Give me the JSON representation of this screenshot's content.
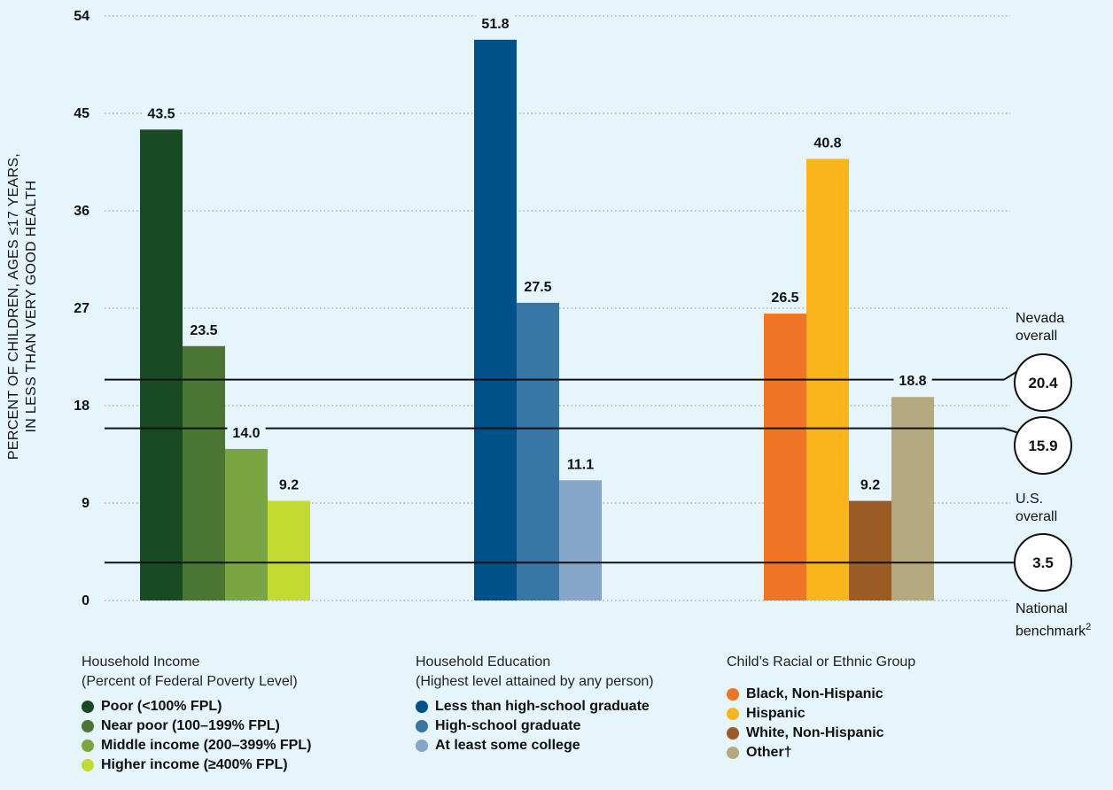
{
  "chart_data": {
    "type": "bar",
    "ylabel_lines": [
      "PERCENT OF CHILDREN, AGES ≤17 YEARS,",
      "IN LESS THAN VERY GOOD HEALTH"
    ],
    "ylim": [
      0,
      54
    ],
    "yticks": [
      "0",
      "9",
      "18",
      "27",
      "36",
      "45",
      "54"
    ],
    "grid": true,
    "groups": [
      {
        "title_lines": [
          "Household Income",
          "(Percent of Federal Poverty Level)"
        ],
        "bars": [
          {
            "name": "Poor (<100% FPL)",
            "value": 43.5,
            "label": "43.5",
            "color": "#184a24"
          },
          {
            "name": "Near poor (100–199% FPL)",
            "value": 23.5,
            "label": "23.5",
            "color": "#4b7533"
          },
          {
            "name": "Middle income (200–399% FPL)",
            "value": 14.0,
            "label": "14.0",
            "color": "#7aa641"
          },
          {
            "name": "Higher income (≥400% FPL)",
            "value": 9.2,
            "label": "9.2",
            "color": "#c3da32"
          }
        ]
      },
      {
        "title_lines": [
          "Household Education",
          "(Highest level attained by any person)"
        ],
        "bars": [
          {
            "name": "Less than high-school graduate",
            "value": 51.8,
            "label": "51.8",
            "color": "#00518a"
          },
          {
            "name": "High-school graduate",
            "value": 27.5,
            "label": "27.5",
            "color": "#3876a6"
          },
          {
            "name": "At least some college",
            "value": 11.1,
            "label": "11.1",
            "color": "#85a6c9"
          }
        ]
      },
      {
        "title_lines": [
          "Child’s Racial or Ethnic Group"
        ],
        "bars": [
          {
            "name": "Black, Non-Hispanic",
            "value": 26.5,
            "label": "26.5",
            "color": "#f07425"
          },
          {
            "name": "Hispanic",
            "value": 40.8,
            "label": "40.8",
            "color": "#fab51d"
          },
          {
            "name": "White, Non-Hispanic",
            "value": 9.2,
            "label": "9.2",
            "color": "#9a5b25"
          },
          {
            "name": "Other†",
            "value": 18.8,
            "label": "18.8",
            "color": "#b5a97f"
          }
        ]
      }
    ],
    "reference_lines": [
      {
        "value": 20.4,
        "label": "20.4",
        "caption_lines": [
          "Nevada",
          "overall"
        ]
      },
      {
        "value": 15.9,
        "label": "15.9",
        "caption_lines": [
          "U.S.",
          "overall"
        ]
      },
      {
        "value": 3.5,
        "label": "3.5",
        "caption_lines": [
          "National",
          "benchmark"
        ],
        "caption_sup": "2"
      }
    ]
  }
}
